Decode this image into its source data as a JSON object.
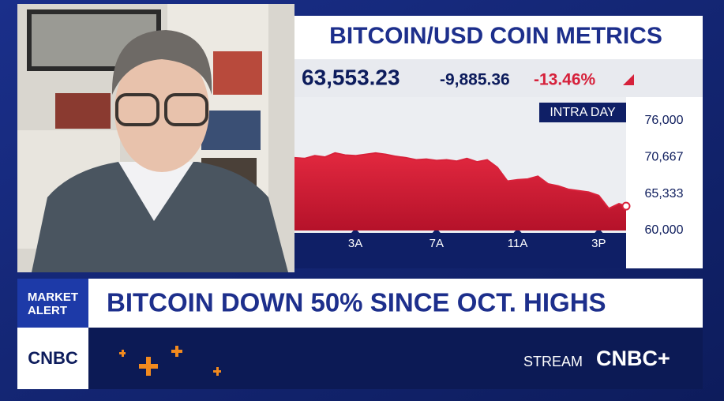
{
  "metrics_panel": {
    "title": "BITCOIN/USD COIN METRICS",
    "price": "63,553.23",
    "change": "-9,885.36",
    "change_pct": "-13.46%"
  },
  "chart_data": {
    "type": "area",
    "label": "INTRA DAY",
    "color": "#d9213a",
    "x": [
      0,
      0.5,
      1,
      1.5,
      2,
      2.5,
      3,
      3.5,
      4,
      4.5,
      5,
      5.5,
      6,
      6.5,
      7,
      7.5,
      8,
      8.5,
      9,
      9.5,
      10,
      10.5,
      11,
      11.5,
      12,
      12.5,
      13,
      13.5,
      14,
      14.5,
      15,
      15.5,
      16,
      16.35
    ],
    "values": [
      70600,
      70500,
      70900,
      70700,
      71300,
      71000,
      70900,
      71100,
      71300,
      71100,
      70800,
      70600,
      70300,
      70400,
      70200,
      70300,
      70100,
      70500,
      70000,
      70300,
      69200,
      67200,
      67400,
      67500,
      67900,
      66800,
      66500,
      66000,
      65800,
      65600,
      65100,
      63200,
      63900,
      63553
    ],
    "xlim": [
      0,
      16.35
    ],
    "xticks": [
      {
        "value": 3,
        "label": "3A"
      },
      {
        "value": 7,
        "label": "7A"
      },
      {
        "value": 11,
        "label": "11A"
      },
      {
        "value": 15,
        "label": "3P"
      }
    ],
    "ylim": [
      60000,
      76000
    ],
    "yticks": [
      {
        "value": 60000,
        "label": "60,000"
      },
      {
        "value": 65333,
        "label": "65,333"
      },
      {
        "value": 70667,
        "label": "70,667"
      },
      {
        "value": 76000,
        "label": "76,000"
      }
    ]
  },
  "banner": {
    "tag_line1": "MARKET",
    "tag_line2": "ALERT",
    "headline": "BITCOIN DOWN 50% SINCE OCT. HIGHS"
  },
  "footer": {
    "logo": "CNBC",
    "stream": "STREAM",
    "stream_logo": "CNBC+"
  }
}
